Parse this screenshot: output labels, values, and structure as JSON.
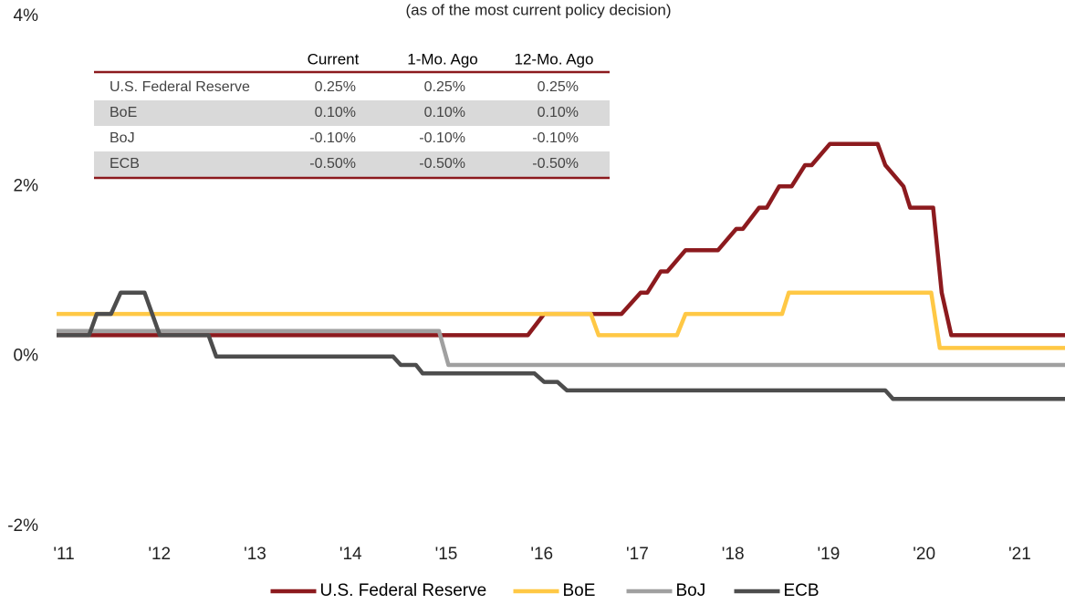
{
  "chart_data": {
    "type": "line",
    "subtitle": "(as of the most current policy decision)",
    "xlim": [
      2011,
      2021.55
    ],
    "xticks": [
      {
        "value": 2011,
        "label": "'11"
      },
      {
        "value": 2012,
        "label": "'12"
      },
      {
        "value": 2013,
        "label": "'13"
      },
      {
        "value": 2014,
        "label": "'14"
      },
      {
        "value": 2015,
        "label": "'15"
      },
      {
        "value": 2016,
        "label": "'16"
      },
      {
        "value": 2017,
        "label": "'17"
      },
      {
        "value": 2018,
        "label": "'18"
      },
      {
        "value": 2019,
        "label": "'19"
      },
      {
        "value": 2020,
        "label": "'20"
      },
      {
        "value": 2021,
        "label": "'21"
      }
    ],
    "ylim": [
      -2,
      4
    ],
    "yticks": [
      {
        "value": -2,
        "label": "-2%"
      },
      {
        "value": 0,
        "label": "0%"
      },
      {
        "value": 2,
        "label": "2%"
      },
      {
        "value": 4,
        "label": "4%"
      }
    ],
    "grid": false,
    "legend": "bottom",
    "series": [
      {
        "name": "U.S. Federal Reserve",
        "color": "#8c1a1e",
        "x": [
          2011,
          2015.93,
          2016.1,
          2016.91,
          2017.11,
          2017.18,
          2017.32,
          2017.39,
          2017.58,
          2017.92,
          2018.11,
          2018.18,
          2018.35,
          2018.43,
          2018.56,
          2018.69,
          2018.83,
          2018.9,
          2019.09,
          2019.59,
          2019.67,
          2019.86,
          2019.93,
          2020.17,
          2020.26,
          2020.36,
          2021.55
        ],
        "values": [
          0.25,
          0.25,
          0.5,
          0.5,
          0.75,
          0.75,
          1.0,
          1.0,
          1.25,
          1.25,
          1.5,
          1.5,
          1.75,
          1.75,
          2.0,
          2.0,
          2.25,
          2.25,
          2.5,
          2.5,
          2.25,
          2.0,
          1.75,
          1.75,
          0.75,
          0.25,
          0.25
        ]
      },
      {
        "name": "BoE",
        "color": "#ffc845",
        "x": [
          2011,
          2016.59,
          2016.67,
          2017.49,
          2017.58,
          2018.59,
          2018.66,
          2020.15,
          2020.24,
          2021.55
        ],
        "values": [
          0.5,
          0.5,
          0.25,
          0.25,
          0.5,
          0.5,
          0.75,
          0.75,
          0.1,
          0.1
        ]
      },
      {
        "name": "BoJ",
        "color": "#a0a0a0",
        "x": [
          2011,
          2015.0,
          2015.1,
          2021.55
        ],
        "values": [
          0.3,
          0.3,
          -0.1,
          -0.1
        ]
      },
      {
        "name": "ECB",
        "color": "#4d4d4d",
        "x": [
          2011,
          2011.34,
          2011.42,
          2011.57,
          2011.67,
          2011.92,
          2012.08,
          2012.59,
          2012.67,
          2014.52,
          2014.6,
          2014.76,
          2014.83,
          2016.0,
          2016.1,
          2016.24,
          2016.34,
          2019.67,
          2019.75,
          2021.55
        ],
        "values": [
          0.25,
          0.25,
          0.5,
          0.5,
          0.75,
          0.75,
          0.25,
          0.25,
          0,
          0,
          -0.1,
          -0.1,
          -0.2,
          -0.2,
          -0.3,
          -0.3,
          -0.4,
          -0.4,
          -0.5,
          -0.5
        ]
      }
    ],
    "table": {
      "columns": [
        "Current",
        "1-Mo. Ago",
        "12-Mo. Ago"
      ],
      "rows": [
        [
          "U.S. Federal Reserve",
          "0.25%",
          "0.25%",
          "0.25%"
        ],
        [
          "BoE",
          "0.10%",
          "0.10%",
          "0.10%"
        ],
        [
          "BoJ",
          "-0.10%",
          "-0.10%",
          "-0.10%"
        ],
        [
          "ECB",
          "-0.50%",
          "-0.50%",
          "-0.50%"
        ]
      ]
    }
  }
}
